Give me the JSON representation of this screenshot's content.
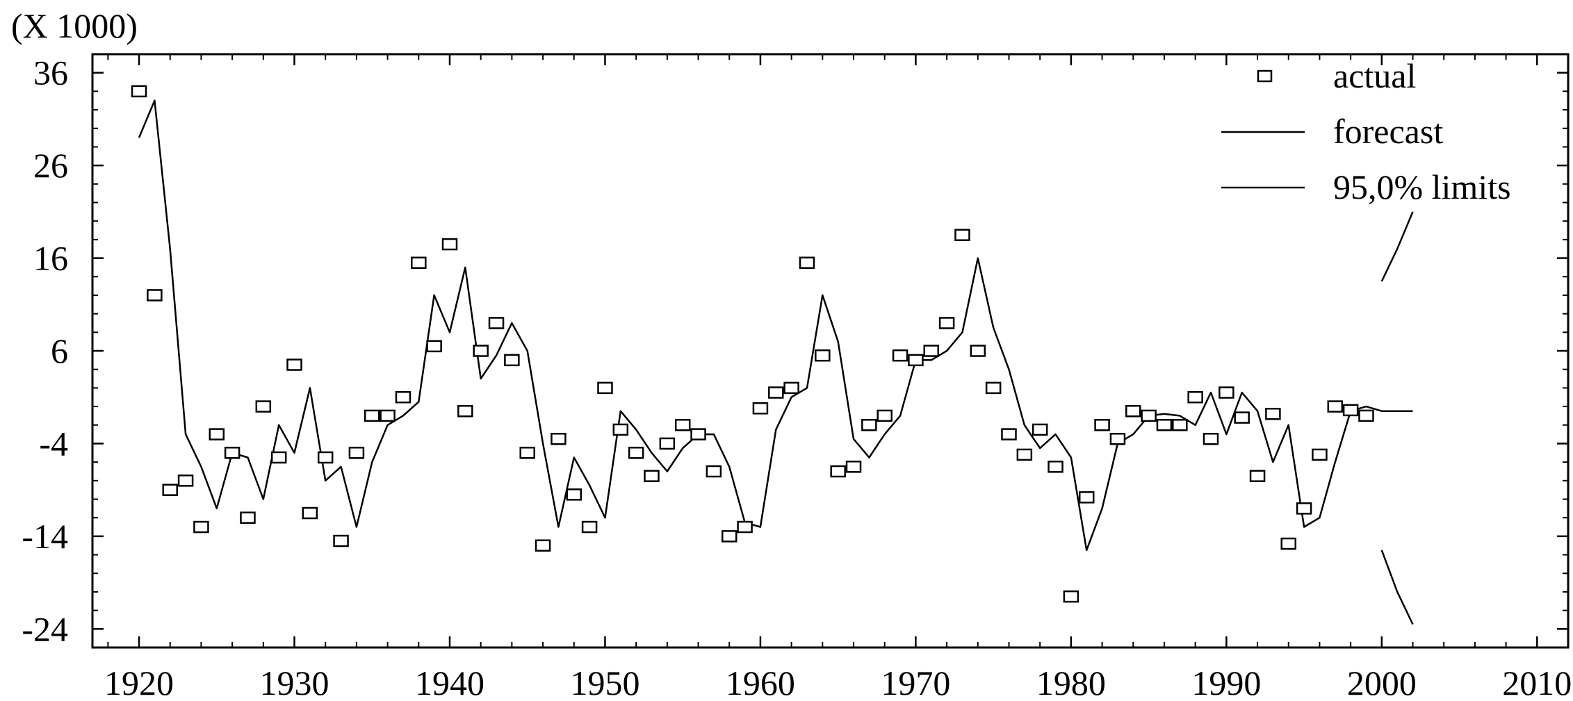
{
  "chart_data": {
    "type": "scatter",
    "scale_note": "(X 1000)",
    "title": "",
    "xlabel": "",
    "ylabel": "",
    "xlim": [
      1917,
      2012
    ],
    "ylim": [
      -26,
      38
    ],
    "x_ticks": [
      1920,
      1930,
      1940,
      1950,
      1960,
      1970,
      1980,
      1990,
      2000,
      2010
    ],
    "x_tick_labels": [
      "1920",
      "1930",
      "1940",
      "1950",
      "1960",
      "1970",
      "1980",
      "1990",
      "2000",
      "2010"
    ],
    "y_ticks": [
      36,
      26,
      16,
      6,
      -4,
      -14,
      -24
    ],
    "y_tick_labels": [
      "36",
      "26",
      "16",
      "6",
      "-4",
      "-14",
      "-24"
    ],
    "grid": false,
    "legend": {
      "placement": "top-right",
      "entries": [
        {
          "label": "actual",
          "marker": "square"
        },
        {
          "label": "forecast",
          "marker": "line"
        },
        {
          "label": "95,0% limits",
          "marker": "line"
        }
      ]
    },
    "series": [
      {
        "name": "actual",
        "kind": "markers",
        "x": [
          1920,
          1921,
          1922,
          1923,
          1924,
          1925,
          1926,
          1927,
          1928,
          1929,
          1930,
          1931,
          1932,
          1933,
          1934,
          1935,
          1936,
          1937,
          1938,
          1939,
          1940,
          1941,
          1942,
          1943,
          1944,
          1945,
          1946,
          1947,
          1948,
          1949,
          1950,
          1951,
          1952,
          1953,
          1954,
          1955,
          1956,
          1957,
          1958,
          1959,
          1960,
          1961,
          1962,
          1963,
          1964,
          1965,
          1966,
          1967,
          1968,
          1969,
          1970,
          1971,
          1972,
          1973,
          1974,
          1975,
          1976,
          1977,
          1978,
          1979,
          1980,
          1981,
          1982,
          1983,
          1984,
          1985,
          1986,
          1987,
          1988,
          1989,
          1990,
          1991,
          1992,
          1993,
          1994,
          1995,
          1996,
          1997,
          1998,
          1999
        ],
        "y": [
          34,
          12,
          -9,
          -8,
          -13,
          -3,
          -5,
          -12,
          0,
          -5.5,
          4.5,
          -11.5,
          -5.5,
          -14.5,
          -5,
          -1,
          -1,
          1,
          15.5,
          6.5,
          17.5,
          -0.5,
          6,
          9,
          5,
          -5,
          -15,
          -3.5,
          -9.5,
          -13,
          2,
          -2.5,
          -5,
          -7.5,
          -4,
          -2,
          -3,
          -7,
          -14,
          -13,
          -0.2,
          1.5,
          2,
          15.5,
          5.5,
          -7,
          -6.5,
          -2,
          -1,
          5.5,
          5,
          6,
          9,
          18.5,
          6,
          2,
          -3,
          -5.2,
          -2.5,
          -6.5,
          -20.5,
          -9.8,
          -2,
          -3.5,
          -0.5,
          -1,
          -2,
          -2,
          1,
          -3.5,
          1.5,
          -1.2,
          -7.5,
          -0.8,
          -14.8,
          -11,
          -5.2,
          0,
          -0.4,
          -1
        ]
      },
      {
        "name": "forecast",
        "kind": "line",
        "x": [
          1920,
          1921,
          1922,
          1923,
          1924,
          1925,
          1926,
          1927,
          1928,
          1929,
          1930,
          1931,
          1932,
          1933,
          1934,
          1935,
          1936,
          1937,
          1938,
          1939,
          1940,
          1941,
          1942,
          1943,
          1944,
          1945,
          1946,
          1947,
          1948,
          1949,
          1950,
          1951,
          1952,
          1953,
          1954,
          1955,
          1956,
          1957,
          1958,
          1959,
          1960,
          1961,
          1962,
          1963,
          1964,
          1965,
          1966,
          1967,
          1968,
          1969,
          1970,
          1971,
          1972,
          1973,
          1974,
          1975,
          1976,
          1977,
          1978,
          1979,
          1980,
          1981,
          1982,
          1983,
          1984,
          1985,
          1986,
          1987,
          1988,
          1989,
          1990,
          1991,
          1992,
          1993,
          1994,
          1995,
          1996,
          1997,
          1998,
          1999,
          2000,
          2001,
          2002
        ],
        "y": [
          29,
          33,
          17,
          -3,
          -6.5,
          -11,
          -5,
          -5.5,
          -10,
          -2,
          -5,
          2,
          -8,
          -6.5,
          -13,
          -6,
          -2,
          -1,
          0.5,
          12,
          8,
          15,
          3,
          5.5,
          9,
          6,
          -4,
          -13,
          -5.5,
          -8.5,
          -12,
          -0.5,
          -2.5,
          -5,
          -7,
          -4.5,
          -3,
          -3,
          -6.5,
          -12.5,
          -13,
          -2.5,
          1,
          2,
          12,
          7,
          -3.5,
          -5.5,
          -3,
          -1,
          5,
          5,
          6,
          8,
          16,
          8.5,
          4,
          -2,
          -4.5,
          -3,
          -5.5,
          -15.5,
          -11,
          -4,
          -3,
          -1,
          -0.8,
          -1,
          -2,
          1.5,
          -3,
          1.5,
          -0.5,
          -6,
          -2,
          -13,
          -12,
          -6,
          -0.5,
          0,
          -0.5,
          -0.5,
          -0.5
        ]
      },
      {
        "name": "95,0% limits (upper)",
        "kind": "line",
        "x": [
          2000,
          2001,
          2002
        ],
        "y": [
          13.5,
          17,
          21
        ]
      },
      {
        "name": "95,0% limits (lower)",
        "kind": "line",
        "x": [
          2000,
          2001,
          2002
        ],
        "y": [
          -15.5,
          -20,
          -23.5
        ]
      }
    ]
  }
}
